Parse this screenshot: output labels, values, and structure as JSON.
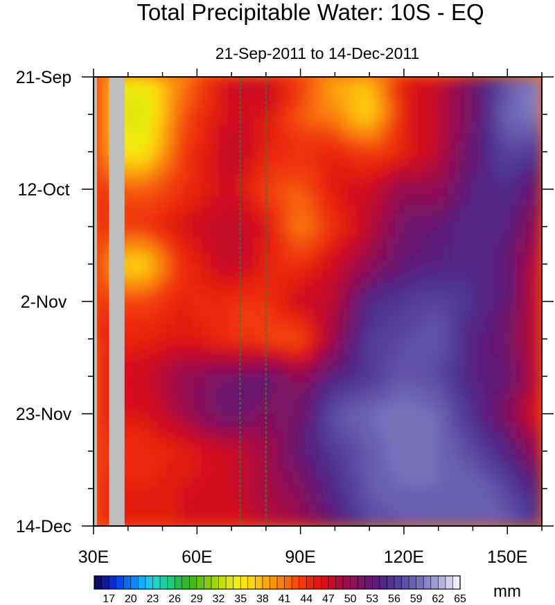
{
  "chart_data": {
    "type": "heatmap",
    "title": "Total Precipitable Water: 10S - EQ",
    "subtitle": "21-Sep-2011 to 14-Dec-2011",
    "xlabel": "",
    "ylabel": "",
    "x_axis": {
      "min": 30,
      "max": 160,
      "major_ticks": [
        30,
        60,
        90,
        120,
        150
      ],
      "tick_labels": [
        "30E",
        "60E",
        "90E",
        "120E",
        "150E"
      ],
      "minor_step": 10
    },
    "y_axis": {
      "reversed": true,
      "start_day": 0,
      "end_day": 84,
      "major_ticks": [
        0,
        21,
        42,
        63,
        84
      ],
      "tick_labels": [
        "21-Sep",
        "12-Oct",
        "2-Nov",
        "23-Nov",
        "14-Dec"
      ],
      "minor_step": 7,
      "unit": "days since 21-Sep-2011"
    },
    "colorbar": {
      "levels": [
        15,
        16,
        17,
        18,
        19,
        20,
        21,
        22,
        23,
        24,
        25,
        26,
        27,
        28,
        29,
        30,
        31,
        32,
        33,
        34,
        35,
        36,
        37,
        38,
        39,
        40,
        41,
        42,
        43,
        44,
        45,
        46,
        47,
        48,
        49,
        50,
        51,
        52,
        53,
        54,
        55,
        56,
        57,
        58,
        59,
        60,
        61,
        62,
        63,
        64,
        65
      ],
      "labels": [
        "17",
        "20",
        "23",
        "26",
        "29",
        "32",
        "35",
        "38",
        "41",
        "44",
        "47",
        "50",
        "53",
        "56",
        "59",
        "62",
        "65"
      ],
      "unit": "mm",
      "colors": [
        "#0a0e6e",
        "#0c1a9c",
        "#0a2cc8",
        "#0848e8",
        "#0a6cf0",
        "#0a8cf4",
        "#10aef4",
        "#18c8e8",
        "#1ad6c8",
        "#1cd2a0",
        "#1ccc78",
        "#20c050",
        "#30b830",
        "#48ba18",
        "#64c40c",
        "#84ce0a",
        "#a4d80a",
        "#c4e00a",
        "#e0e80c",
        "#f4ee10",
        "#fae410",
        "#fcd40e",
        "#fcc00c",
        "#fcaa0a",
        "#fc9408",
        "#fa7e08",
        "#f86808",
        "#f45008",
        "#f03808",
        "#ea2808",
        "#e01a10",
        "#d4101c",
        "#c40c2c",
        "#b00c3c",
        "#9c0e4c",
        "#8a1058",
        "#7a1464",
        "#6a1870",
        "#5c1e7c",
        "#522888",
        "#503494",
        "#54409e",
        "#5e50a8",
        "#6a60b2",
        "#7872bc",
        "#8a86c6",
        "#a09cd2",
        "#b8b4de",
        "#d4d0ea",
        "#f0eef8"
      ],
      "land_mask_color": "#bdbdbd"
    },
    "reference_lines": [
      {
        "lon": 72.5,
        "style": "dashed",
        "color": "#2e7d32"
      },
      {
        "lon": 80,
        "style": "dashed",
        "color": "#2e7d32"
      }
    ],
    "land_mask": [
      {
        "from": 30,
        "to": 31
      },
      {
        "from": 34.5,
        "to": 39
      }
    ],
    "summary_values_mm": {
      "lon": [
        32,
        38,
        45,
        55,
        70,
        80,
        90,
        100,
        110,
        120,
        130,
        140,
        150,
        158
      ],
      "days": [
        0,
        7,
        14,
        21,
        28,
        35,
        42,
        49,
        56,
        63,
        70,
        77,
        84
      ],
      "tpw": [
        [
          43,
          null,
          35,
          40,
          47,
          48,
          44,
          38,
          38,
          46,
          47,
          52,
          58,
          60
        ],
        [
          44,
          null,
          33,
          42,
          47,
          46,
          42,
          40,
          36,
          45,
          48,
          52,
          59,
          60
        ],
        [
          43,
          null,
          35,
          43,
          48,
          45,
          44,
          45,
          43,
          45,
          48,
          53,
          57,
          56
        ],
        [
          44,
          null,
          42,
          44,
          47,
          43,
          42,
          46,
          47,
          50,
          50,
          54,
          55,
          52
        ],
        [
          44,
          null,
          44,
          46,
          48,
          46,
          40,
          44,
          48,
          52,
          53,
          55,
          54,
          50
        ],
        [
          43,
          null,
          36,
          44,
          48,
          45,
          44,
          47,
          50,
          53,
          54,
          55,
          53,
          48
        ],
        [
          44,
          null,
          43,
          45,
          44,
          44,
          47,
          48,
          55,
          56,
          57,
          55,
          53,
          47
        ],
        [
          44,
          null,
          45,
          46,
          44,
          43,
          42,
          50,
          56,
          57,
          58,
          54,
          52,
          47
        ],
        [
          43,
          null,
          47,
          50,
          52,
          53,
          50,
          54,
          56,
          58,
          57,
          54,
          53,
          48
        ],
        [
          44,
          null,
          46,
          49,
          53,
          51,
          52,
          58,
          59,
          60,
          59,
          55,
          51,
          46
        ],
        [
          43,
          null,
          44,
          45,
          47,
          49,
          53,
          56,
          58,
          60,
          59,
          57,
          54,
          50
        ],
        [
          44,
          null,
          45,
          46,
          47,
          49,
          51,
          55,
          58,
          59,
          59,
          59,
          57,
          54
        ],
        [
          43,
          null,
          46,
          46,
          46,
          48,
          49,
          53,
          57,
          58,
          58,
          59,
          58,
          56
        ]
      ]
    }
  }
}
